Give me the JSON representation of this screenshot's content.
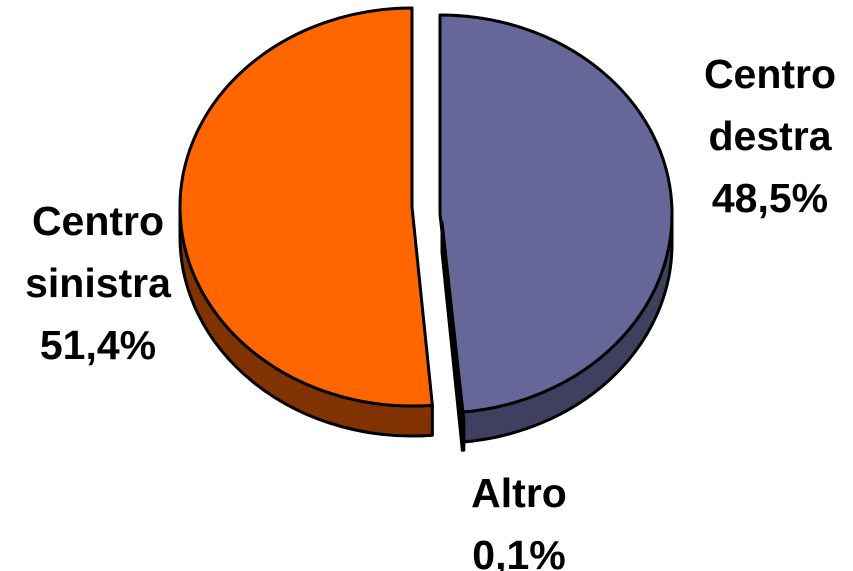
{
  "chart_data": {
    "type": "pie",
    "title": "",
    "style": "3d-exploded",
    "slices": [
      {
        "name": "Centro destra",
        "label_lines": [
          "Centro",
          "destra"
        ],
        "value": 48.5,
        "value_label": "48,5%",
        "color": "#666699",
        "side_color": "#3f3f5f"
      },
      {
        "name": "Altro",
        "label_lines": [
          "Altro"
        ],
        "value": 0.1,
        "value_label": "0,1%",
        "color": "#9999ff",
        "side_color": "#4d4d80"
      },
      {
        "name": "Centro sinistra",
        "label_lines": [
          "Centro",
          "sinistra"
        ],
        "value": 51.4,
        "value_label": "51,4%",
        "color": "#ff6600",
        "side_color": "#803300"
      }
    ]
  }
}
